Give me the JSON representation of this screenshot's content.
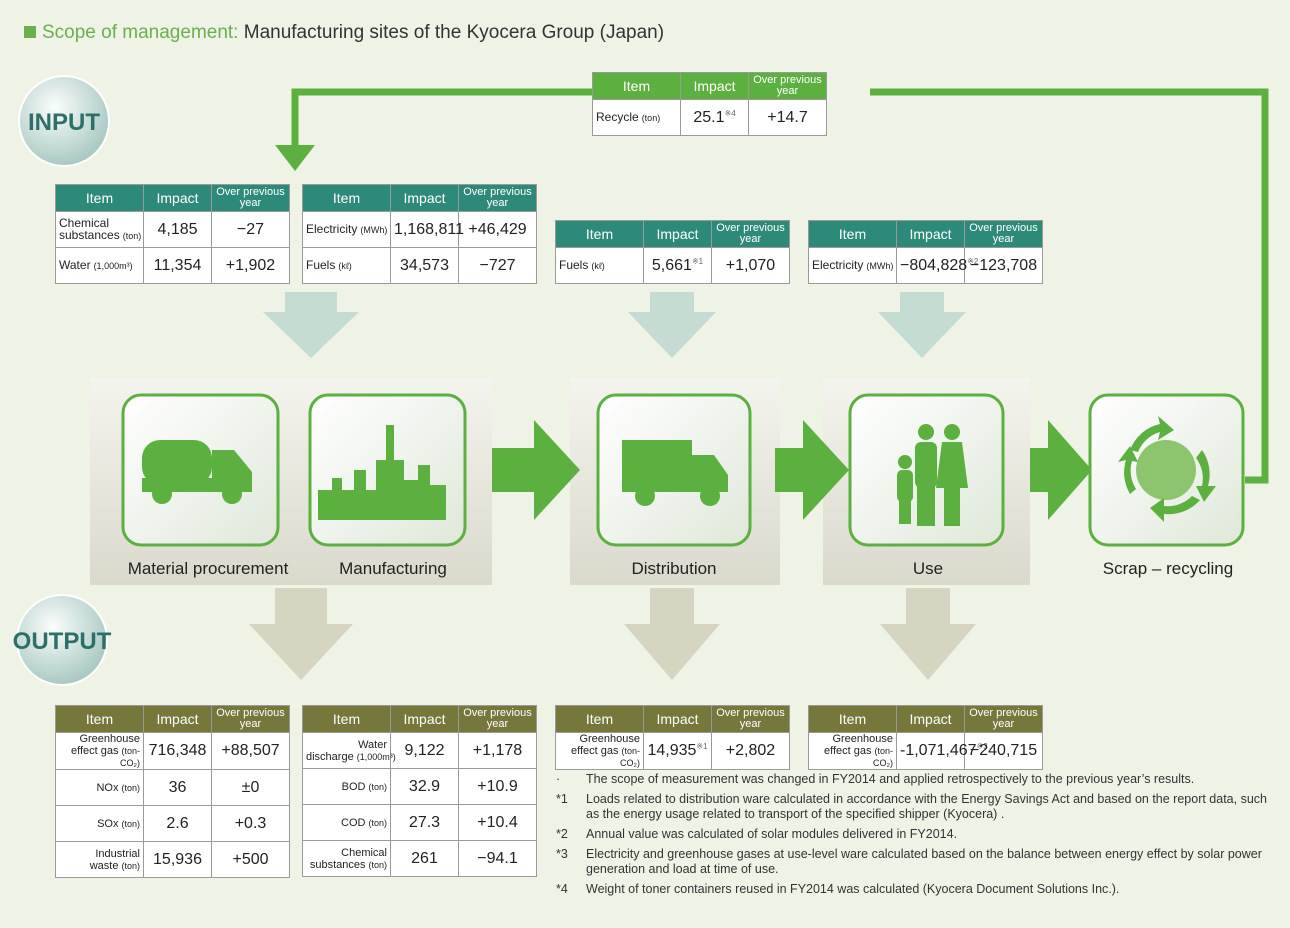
{
  "header": {
    "prefix": "Scope of management:",
    "text": "Manufacturing sites of the Kyocera Group (Japan)"
  },
  "input_label": "INPUT",
  "output_label": "OUTPUT",
  "recycle_table": {
    "headers": [
      "Item",
      "Impact",
      "Over previous year"
    ],
    "rows": [
      {
        "item": "Recycle",
        "unit": "(ton)",
        "impact": "25.1",
        "note": "※4",
        "change": "+14.7"
      }
    ]
  },
  "input_tables": [
    {
      "headers": [
        "Item",
        "Impact",
        "Over previous year"
      ],
      "rows": [
        {
          "item": "Chemical substances",
          "unit": "(ton)",
          "impact": "4,185",
          "change": "−27"
        },
        {
          "item": "Water",
          "unit": "(1,000m³)",
          "impact": "11,354",
          "change": "+1,902"
        }
      ]
    },
    {
      "headers": [
        "Item",
        "Impact",
        "Over previous year"
      ],
      "rows": [
        {
          "item": "Electricity",
          "unit": "(MWh)",
          "impact": "1,168,811",
          "change": "+46,429"
        },
        {
          "item": "Fuels",
          "unit": "(kℓ)",
          "impact": "34,573",
          "change": "−727"
        }
      ]
    },
    {
      "headers": [
        "Item",
        "Impact",
        "Over previous year"
      ],
      "rows": [
        {
          "item": "Fuels",
          "unit": "(kℓ)",
          "impact": "5,661",
          "note": "※1",
          "change": "+1,070"
        }
      ]
    },
    {
      "headers": [
        "Item",
        "Impact",
        "Over previous year"
      ],
      "rows": [
        {
          "item": "Electricity",
          "unit": "(MWh)",
          "impact": "−804,828",
          "note": "※2",
          "change": "−123,708"
        }
      ]
    }
  ],
  "stages": [
    "Material procurement",
    "Manufacturing",
    "Distribution",
    "Use",
    "Scrap – recycling"
  ],
  "output_tables": [
    {
      "headers": [
        "Item",
        "Impact",
        "Over previous year"
      ],
      "rows": [
        {
          "item": "Greenhouse effect gas",
          "unit": "(ton-CO₂)",
          "impact": "716,348",
          "change": "+88,507"
        },
        {
          "item": "NOx",
          "unit": "(ton)",
          "impact": "36",
          "change": "±0"
        },
        {
          "item": "SOx",
          "unit": "(ton)",
          "impact": "2.6",
          "change": "+0.3"
        },
        {
          "item": "Industrial waste",
          "unit": "(ton)",
          "impact": "15,936",
          "change": "+500"
        }
      ]
    },
    {
      "headers": [
        "Item",
        "Impact",
        "Over previous year"
      ],
      "rows": [
        {
          "item": "Water discharge",
          "unit": "(1,000m³)",
          "impact": "9,122",
          "change": "+1,178"
        },
        {
          "item": "BOD",
          "unit": "(ton)",
          "impact": "32.9",
          "change": "+10.9"
        },
        {
          "item": "COD",
          "unit": "(ton)",
          "impact": "27.3",
          "change": "+10.4"
        },
        {
          "item": "Chemical substances",
          "unit": "(ton)",
          "impact": "261",
          "change": "−94.1"
        }
      ]
    },
    {
      "headers": [
        "Item",
        "Impact",
        "Over previous year"
      ],
      "rows": [
        {
          "item": "Greenhouse effect gas",
          "unit": "(ton-CO₂)",
          "impact": "14,935",
          "note": "※1",
          "change": "+2,802"
        }
      ]
    },
    {
      "headers": [
        "Item",
        "Impact",
        "Over previous year"
      ],
      "rows": [
        {
          "item": "Greenhouse effect gas",
          "unit": "(ton-CO₂)",
          "impact": "-1,071,467",
          "note": "※3",
          "change": "−240,715"
        }
      ]
    }
  ],
  "footnotes": [
    {
      "mark": "·",
      "text": "The scope of measurement was changed in FY2014 and applied retrospectively to the previous year’s results."
    },
    {
      "mark": "*1",
      "text": "Loads related to distribution ware calculated in accordance with the Energy Savings Act and based on the report data, such as the energy usage related to transport of the specified shipper (Kyocera) ."
    },
    {
      "mark": "*2",
      "text": "Annual value was calculated of solar modules delivered in FY2014."
    },
    {
      "mark": "*3",
      "text": "Electricity and greenhouse gases at use-level ware calculated based on the balance between energy effect by solar power generation and load at time of use."
    },
    {
      "mark": "*4",
      "text": "Weight of toner containers reused in FY2014 was calculated (Kyocera Document Solutions Inc.)."
    }
  ]
}
